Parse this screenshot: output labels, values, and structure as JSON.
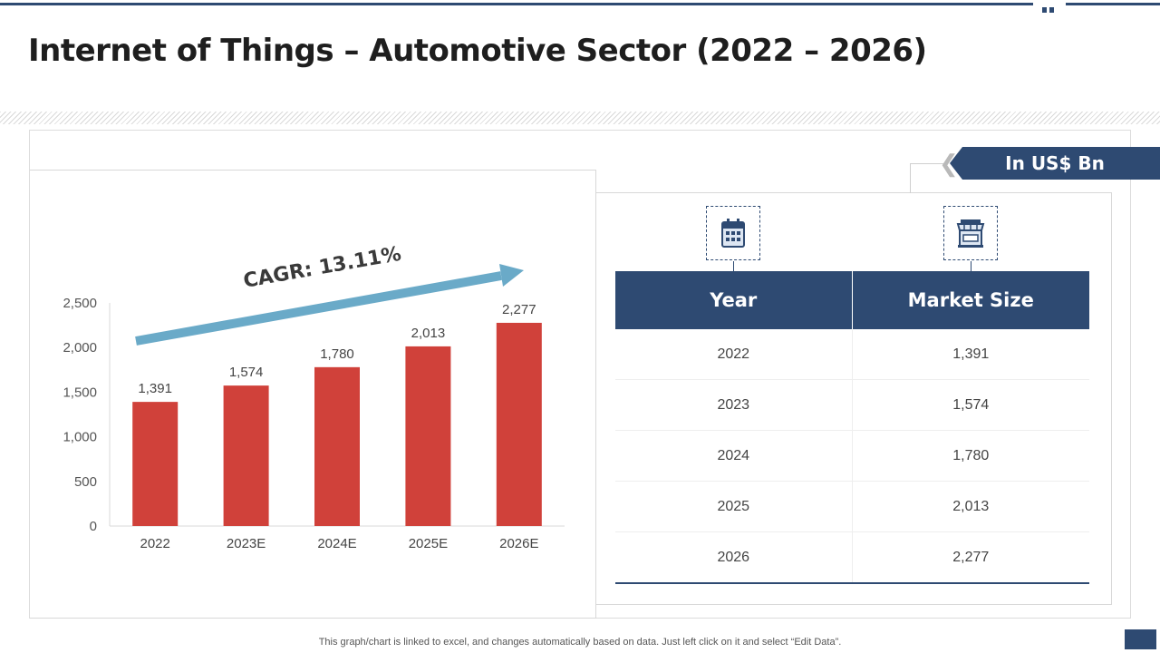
{
  "slide": {
    "title": "Internet of Things – Automotive Sector (2022 – 2026)",
    "unit_badge": "In US$ Bn",
    "footer": "This graph/chart is linked to excel,  and changes automatically based on data. Just left click on it and select “Edit Data”.",
    "icons": {
      "year_column": "calendar-icon",
      "market_column": "storefront-icon"
    },
    "colors": {
      "navy": "#2e4a72",
      "bar": "#d0413a",
      "arrow": "#6aaac8"
    }
  },
  "chart_data": {
    "type": "bar",
    "categories": [
      "2022",
      "2023E",
      "2024E",
      "2025E",
      "2026E"
    ],
    "values": [
      1391,
      1574,
      1780,
      2013,
      2277
    ],
    "data_labels": [
      "1,391",
      "1,574",
      "1,780",
      "2,013",
      "2,277"
    ],
    "ylim": [
      0,
      2500
    ],
    "y_ticks": [
      0,
      500,
      1000,
      1500,
      2000,
      2500
    ],
    "y_tick_labels": [
      "0",
      "500",
      "1,000",
      "1,500",
      "2,000",
      "2,500"
    ],
    "annotation": "CAGR: 13.11%",
    "grid": false,
    "legend": "none"
  },
  "table": {
    "headers": [
      "Year",
      "Market Size"
    ],
    "rows": [
      [
        "2022",
        "1,391"
      ],
      [
        "2023",
        "1,574"
      ],
      [
        "2024",
        "1,780"
      ],
      [
        "2025",
        "2,013"
      ],
      [
        "2026",
        "2,277"
      ]
    ]
  }
}
